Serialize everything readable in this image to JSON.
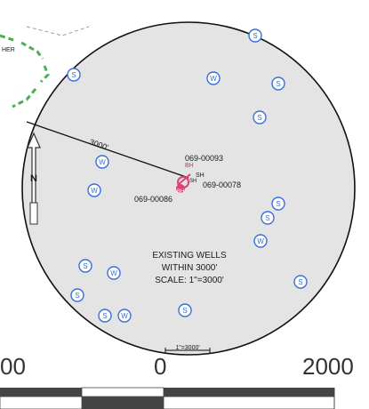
{
  "map": {
    "radius_label": "3000'",
    "corner_label": "HER",
    "north_letter": "N",
    "colors": {
      "circle_fill": "#e4e4e4",
      "circle_stroke": "#111111",
      "well_symbol": "#3a6fd8",
      "subject_well": "#e0407a",
      "boundary_dashed": "#4caf50",
      "ruler_dark": "#444444",
      "ruler_light": "#ffffff"
    }
  },
  "legend": {
    "line1": "EXISTING WELLS",
    "line2": "WITHIN 3000'",
    "line3": "SCALE: 1\"=3000'"
  },
  "bottom_scale_text": "1\"=3000'",
  "subject": {
    "id_top": "069-00093",
    "id_right": "069-00078",
    "id_left": "069-00086",
    "tag_a": "BH",
    "tag_b": "SH",
    "tag_c": "SH",
    "tag_d": "BH"
  },
  "wells": [
    {
      "kind": "S",
      "letter": "S"
    },
    {
      "kind": "S",
      "letter": "S"
    },
    {
      "kind": "W",
      "letter": "W"
    },
    {
      "kind": "S",
      "letter": "S"
    },
    {
      "kind": "S",
      "letter": "S"
    },
    {
      "kind": "W",
      "letter": "W"
    },
    {
      "kind": "W",
      "letter": "W"
    },
    {
      "kind": "S",
      "letter": "S"
    },
    {
      "kind": "S",
      "letter": "S"
    },
    {
      "kind": "W",
      "letter": "W"
    },
    {
      "kind": "S",
      "letter": "S"
    },
    {
      "kind": "W",
      "letter": "W"
    },
    {
      "kind": "S",
      "letter": "S"
    },
    {
      "kind": "S",
      "letter": "S"
    },
    {
      "kind": "S",
      "letter": "S"
    },
    {
      "kind": "W",
      "letter": "W"
    },
    {
      "kind": "S",
      "letter": "S"
    }
  ],
  "scale_bar": {
    "left_label": "00",
    "middle_label": "0",
    "right_label": "2000"
  }
}
